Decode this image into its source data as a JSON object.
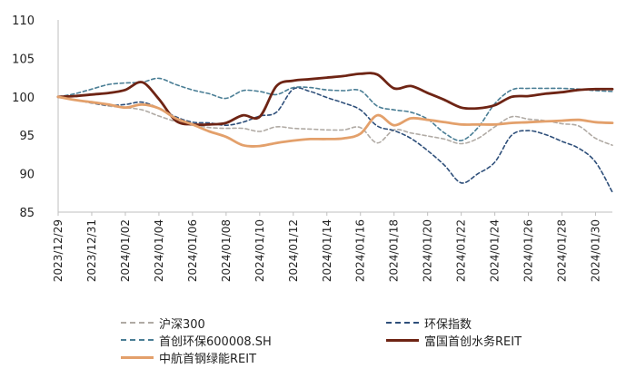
{
  "chart_data": {
    "type": "line",
    "title": "",
    "xlabel": "",
    "ylabel": "",
    "ylim": [
      85,
      110
    ],
    "yticks": [
      85,
      90,
      95,
      100,
      105,
      110
    ],
    "x": [
      "2023/12/29",
      "2023/12/30",
      "2023/12/31",
      "2024/01/01",
      "2024/01/02",
      "2024/01/03",
      "2024/01/04",
      "2024/01/05",
      "2024/01/06",
      "2024/01/07",
      "2024/01/08",
      "2024/01/09",
      "2024/01/10",
      "2024/01/11",
      "2024/01/12",
      "2024/01/13",
      "2024/01/14",
      "2024/01/15",
      "2024/01/16",
      "2024/01/17",
      "2024/01/18",
      "2024/01/19",
      "2024/01/20",
      "2024/01/21",
      "2024/01/22",
      "2024/01/23",
      "2024/01/24",
      "2024/01/25",
      "2024/01/26",
      "2024/01/27",
      "2024/01/28",
      "2024/01/29",
      "2024/01/30",
      "2024/01/31"
    ],
    "xticklabels": [
      "2023/12/29",
      "2023/12/31",
      "2024/01/02",
      "2024/01/04",
      "2024/01/06",
      "2024/01/08",
      "2024/01/10",
      "2024/01/12",
      "2024/01/14",
      "2024/01/16",
      "2024/01/18",
      "2024/01/20",
      "2024/01/22",
      "2024/01/24",
      "2024/01/26",
      "2024/01/28",
      "2024/01/30"
    ],
    "series": [
      {
        "name": "沪深300",
        "color": "#b0aaa4",
        "style": "dashed",
        "values": [
          100,
          99.6,
          99.2,
          98.8,
          98.6,
          98.3,
          97.5,
          96.8,
          96.4,
          96.0,
          95.9,
          95.9,
          95.5,
          96.1,
          95.9,
          95.8,
          95.7,
          95.7,
          96.0,
          94.0,
          95.7,
          95.3,
          94.9,
          94.5,
          93.9,
          94.6,
          96.1,
          97.4,
          97.1,
          96.9,
          96.5,
          96.2,
          94.6,
          93.7
        ]
      },
      {
        "name": "环保指数",
        "color": "#2e4f7a",
        "style": "dashed",
        "values": [
          100,
          99.6,
          99.2,
          98.9,
          99.0,
          99.3,
          98.5,
          97.4,
          96.7,
          96.6,
          96.3,
          96.7,
          97.5,
          98.0,
          101.0,
          100.7,
          99.9,
          99.2,
          98.3,
          96.2,
          95.6,
          94.6,
          93.0,
          91.1,
          88.8,
          90.0,
          91.5,
          95.0,
          95.6,
          95.1,
          94.2,
          93.3,
          91.5,
          87.6
        ]
      },
      {
        "name": "首创环保600008.SH",
        "color": "#4a7e95",
        "style": "dashed",
        "values": [
          100,
          100.4,
          101.0,
          101.6,
          101.8,
          101.9,
          102.4,
          101.6,
          100.9,
          100.4,
          99.8,
          100.8,
          100.7,
          100.3,
          101.2,
          101.2,
          100.9,
          100.8,
          100.8,
          98.8,
          98.3,
          98.0,
          97.1,
          95.3,
          94.3,
          96.0,
          99.1,
          100.9,
          101.1,
          101.1,
          101.1,
          101.0,
          100.8,
          100.7
        ]
      },
      {
        "name": "富国首创水务REIT",
        "color": "#6e2414",
        "style": "solid",
        "values": [
          100,
          100.1,
          100.3,
          100.5,
          100.9,
          101.9,
          99.7,
          96.9,
          96.4,
          96.4,
          96.6,
          97.6,
          97.4,
          101.4,
          102.1,
          102.3,
          102.5,
          102.7,
          103.0,
          102.9,
          101.1,
          101.4,
          100.5,
          99.6,
          98.6,
          98.5,
          98.9,
          100.0,
          100.1,
          100.4,
          100.6,
          100.9,
          101.0,
          101.0
        ]
      },
      {
        "name": "中航首钢绿能REIT",
        "color": "#e3a06b",
        "style": "solid",
        "values": [
          100,
          99.6,
          99.3,
          99.0,
          98.6,
          99.0,
          98.5,
          97.2,
          96.4,
          95.5,
          94.8,
          93.7,
          93.6,
          94.0,
          94.3,
          94.5,
          94.5,
          94.6,
          95.2,
          97.6,
          96.3,
          97.2,
          97.0,
          96.7,
          96.4,
          96.4,
          96.4,
          96.6,
          96.7,
          96.8,
          96.9,
          97.0,
          96.7,
          96.6
        ]
      }
    ],
    "legend": {
      "placement": "bottom"
    }
  }
}
